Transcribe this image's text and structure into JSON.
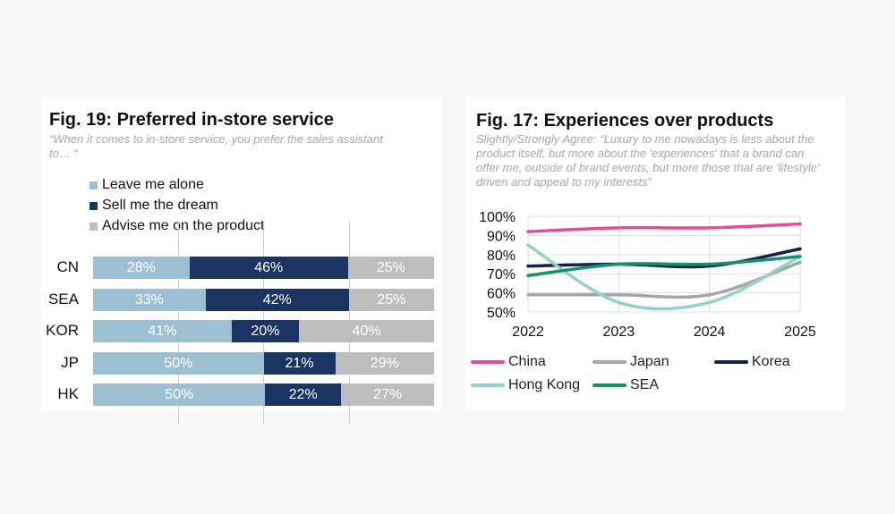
{
  "colors": {
    "leave_alone": "#9cc0d2",
    "sell_dream": "#1c3461",
    "advise": "#bdbdbd",
    "china": "#e8499b",
    "japan": "#a6a6a6",
    "korea": "#13234f",
    "hong_kong": "#8fd3cb",
    "sea": "#14926c"
  },
  "chart_data": [
    {
      "type": "bar",
      "stacked": true,
      "orientation": "horizontal",
      "title": "Fig. 19: Preferred in-store service",
      "subtitle": "“When it comes to in-store service, you prefer the sales assistant to… “",
      "categories": [
        "CN",
        "SEA",
        "KOR",
        "JP",
        "HK"
      ],
      "series": [
        {
          "name": "Leave me alone",
          "values": [
            28,
            33,
            41,
            50,
            50
          ],
          "labels": [
            "28%",
            "33%",
            "41%",
            "50%",
            "50%"
          ]
        },
        {
          "name": "Sell me the dream",
          "values": [
            46,
            42,
            20,
            21,
            22
          ],
          "labels": [
            "46%",
            "42%",
            "20%",
            "21%",
            "22%"
          ]
        },
        {
          "name": "Advise me on the product",
          "values": [
            25,
            25,
            40,
            29,
            27
          ],
          "labels": [
            "25%",
            "25%",
            "40%",
            "29%",
            "27%"
          ]
        }
      ],
      "grid_percent": [
        25,
        50,
        75
      ],
      "legend_position": "top-left"
    },
    {
      "type": "line",
      "title": "Fig. 17: Experiences over products",
      "subtitle": "Slightly/Strongly Agree: “Luxury to me nowadays is less about the product itself, but more about the 'experiences' that a brand can offer me, outside of brand events, but more those that are 'lifestyle' driven and appeal to my interests”",
      "x": [
        2022,
        2023,
        2024,
        2025
      ],
      "x_labels": [
        "2022",
        "2023",
        "2024",
        "2025"
      ],
      "ylim": [
        50,
        100
      ],
      "y_ticks": [
        50,
        60,
        70,
        80,
        90,
        100
      ],
      "y_tick_labels": [
        "50%",
        "60%",
        "70%",
        "80%",
        "90%",
        "100%"
      ],
      "grid": true,
      "series": [
        {
          "name": "China",
          "values": [
            92,
            94,
            94,
            96
          ]
        },
        {
          "name": "Japan",
          "values": [
            59,
            59,
            59,
            76
          ]
        },
        {
          "name": "Korea",
          "values": [
            74,
            75,
            74,
            83
          ]
        },
        {
          "name": "Hong Kong",
          "values": [
            85,
            55,
            55,
            79
          ]
        },
        {
          "name": "SEA",
          "values": [
            69,
            75,
            75,
            79
          ]
        }
      ],
      "legend_position": "bottom"
    }
  ]
}
